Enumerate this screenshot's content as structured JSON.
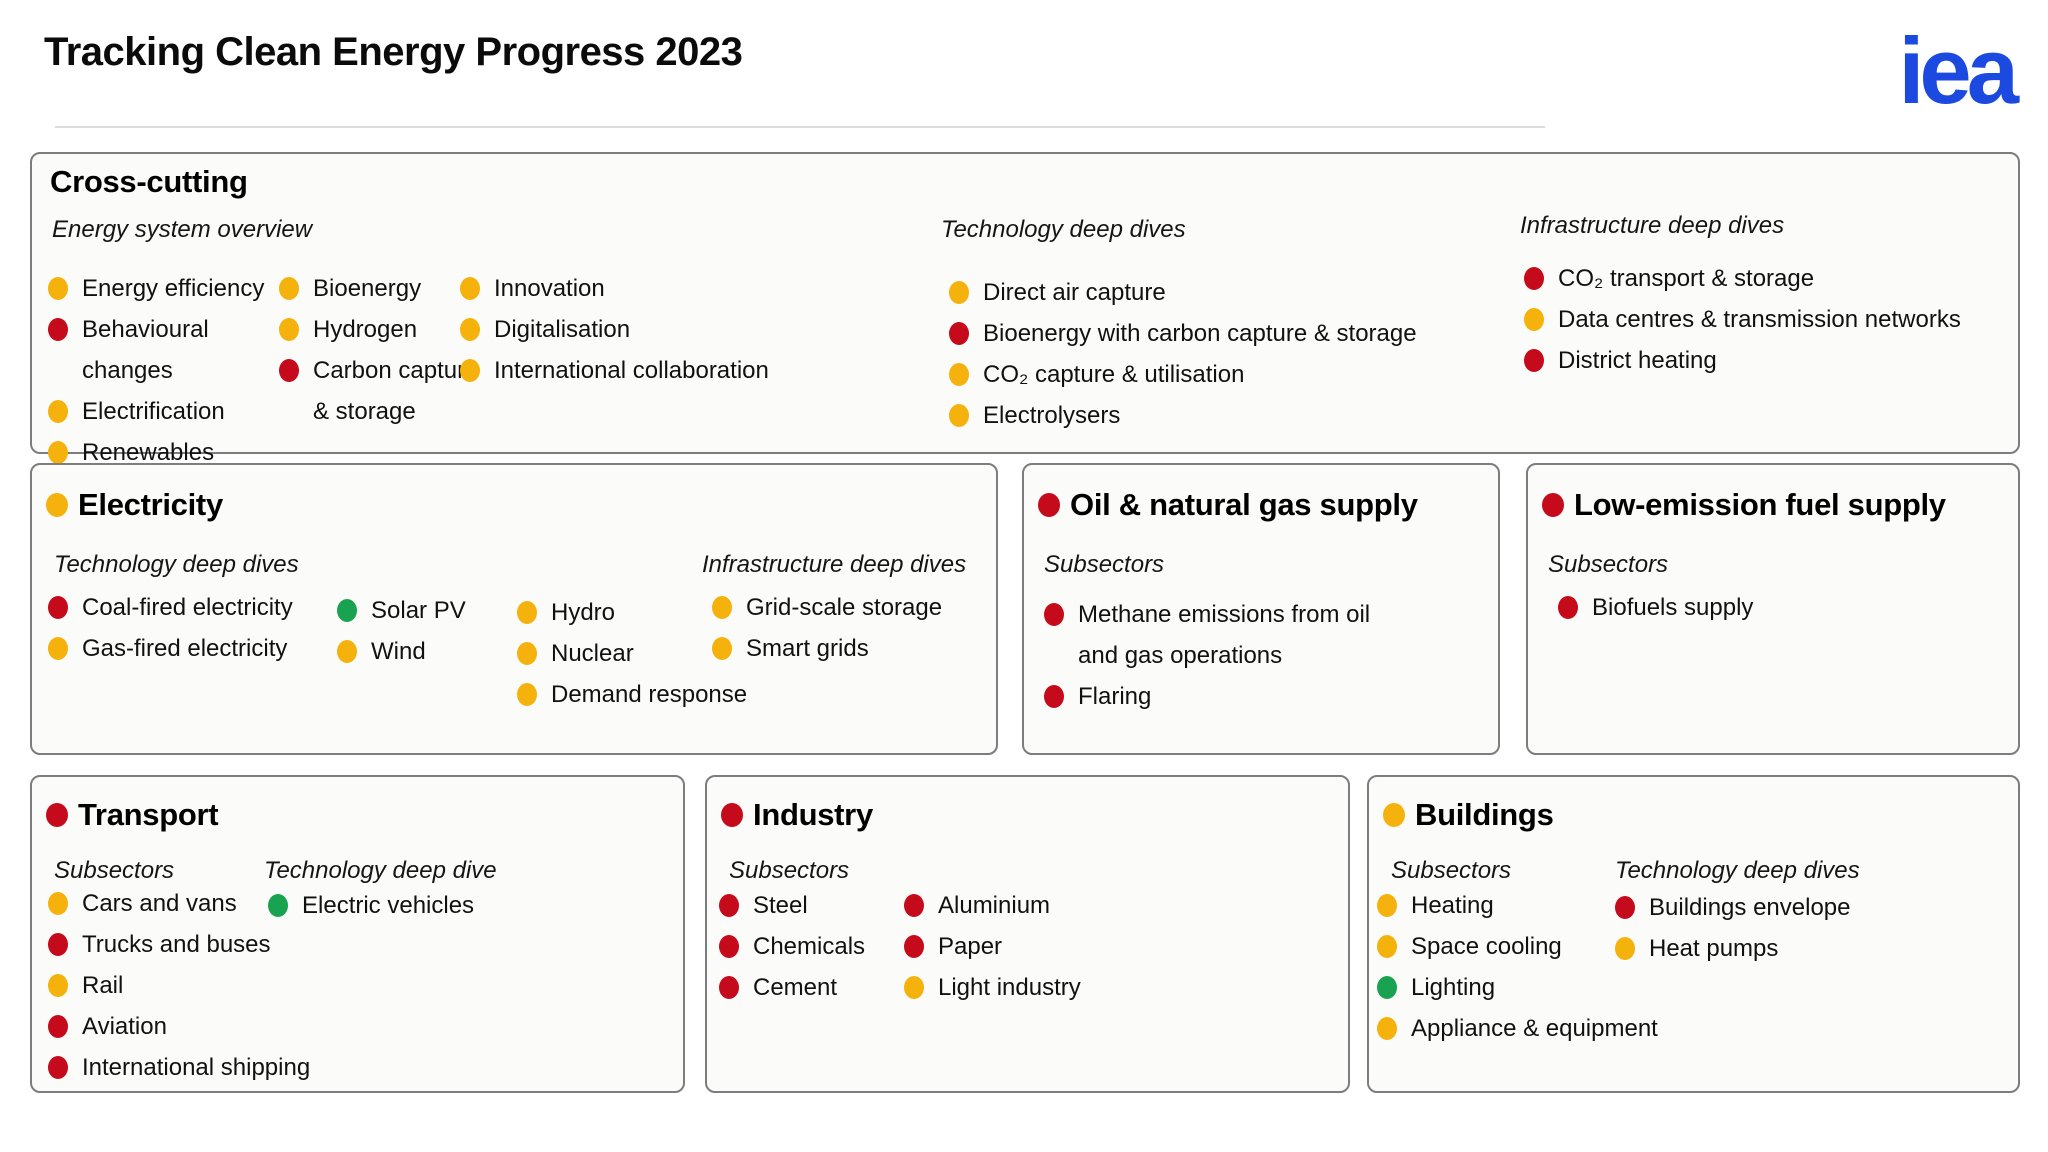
{
  "header": {
    "title": "Tracking Clean Energy Progress 2023",
    "logo": "iea"
  },
  "legend_colors": {
    "green": "#19A351",
    "yellow": "#F5B20D",
    "red": "#C50A1B"
  },
  "logo_color": "#1C49E0",
  "sections": {
    "cross_cutting": {
      "title": "Cross-cutting",
      "groups": [
        {
          "label": "Energy system overview",
          "columns": [
            [
              {
                "label": "Energy efficiency",
                "status": "yellow"
              },
              {
                "label": "Behavioural changes",
                "status": "red"
              },
              {
                "label": "Electrification",
                "status": "yellow"
              },
              {
                "label": "Renewables",
                "status": "yellow"
              }
            ],
            [
              {
                "label": "Bioenergy",
                "status": "yellow"
              },
              {
                "label": "Hydrogen",
                "status": "yellow"
              },
              {
                "label": "Carbon capture & storage",
                "status": "red"
              }
            ],
            [
              {
                "label": "Innovation",
                "status": "yellow"
              },
              {
                "label": "Digitalisation",
                "status": "yellow"
              },
              {
                "label": "International collaboration",
                "status": "yellow"
              }
            ]
          ]
        },
        {
          "label": "Technology deep dives",
          "columns": [
            [
              {
                "label": "Direct air capture",
                "status": "yellow"
              },
              {
                "label": "Bioenergy with carbon capture & storage",
                "status": "red"
              },
              {
                "label": "CO₂ capture & utilisation",
                "status": "yellow"
              },
              {
                "label": "Electrolysers",
                "status": "yellow"
              }
            ]
          ]
        },
        {
          "label": "Infrastructure deep dives",
          "columns": [
            [
              {
                "label": "CO₂ transport & storage",
                "status": "red"
              },
              {
                "label": "Data centres & transmission networks",
                "status": "yellow"
              },
              {
                "label": "District heating",
                "status": "red"
              }
            ]
          ]
        }
      ]
    },
    "electricity": {
      "title": "Electricity",
      "status": "yellow",
      "groups": [
        {
          "label": "Technology deep dives",
          "columns": [
            [
              {
                "label": "Coal-fired electricity",
                "status": "red"
              },
              {
                "label": "Gas-fired electricity",
                "status": "yellow"
              }
            ],
            [
              {
                "label": "Solar PV",
                "status": "green"
              },
              {
                "label": "Wind",
                "status": "yellow"
              }
            ],
            [
              {
                "label": "Hydro",
                "status": "yellow"
              },
              {
                "label": "Nuclear",
                "status": "yellow"
              },
              {
                "label": "Demand response",
                "status": "yellow"
              }
            ]
          ]
        },
        {
          "label": "Infrastructure deep dives",
          "columns": [
            [
              {
                "label": "Grid-scale storage",
                "status": "yellow"
              },
              {
                "label": "Smart grids",
                "status": "yellow"
              }
            ]
          ]
        }
      ]
    },
    "oil_gas": {
      "title": "Oil & natural gas supply",
      "status": "red",
      "groups": [
        {
          "label": "Subsectors",
          "columns": [
            [
              {
                "label": "Methane emissions from oil and gas operations",
                "status": "red"
              },
              {
                "label": "Flaring",
                "status": "red"
              }
            ]
          ]
        }
      ]
    },
    "low_emission_fuel": {
      "title": "Low-emission fuel supply",
      "status": "red",
      "groups": [
        {
          "label": "Subsectors",
          "columns": [
            [
              {
                "label": "Biofuels supply",
                "status": "red"
              }
            ]
          ]
        }
      ]
    },
    "transport": {
      "title": "Transport",
      "status": "red",
      "groups": [
        {
          "label": "Subsectors",
          "columns": [
            [
              {
                "label": "Cars and vans",
                "status": "yellow"
              },
              {
                "label": "Trucks and buses",
                "status": "red"
              },
              {
                "label": "Rail",
                "status": "yellow"
              },
              {
                "label": "Aviation",
                "status": "red"
              },
              {
                "label": "International shipping",
                "status": "red"
              }
            ]
          ]
        },
        {
          "label": "Technology deep dive",
          "columns": [
            [
              {
                "label": "Electric vehicles",
                "status": "green"
              }
            ]
          ]
        }
      ]
    },
    "industry": {
      "title": "Industry",
      "status": "red",
      "groups": [
        {
          "label": "Subsectors",
          "columns": [
            [
              {
                "label": "Steel",
                "status": "red"
              },
              {
                "label": "Chemicals",
                "status": "red"
              },
              {
                "label": "Cement",
                "status": "red"
              }
            ],
            [
              {
                "label": "Aluminium",
                "status": "red"
              },
              {
                "label": "Paper",
                "status": "red"
              },
              {
                "label": "Light industry",
                "status": "yellow"
              }
            ]
          ]
        }
      ]
    },
    "buildings": {
      "title": "Buildings",
      "status": "yellow",
      "groups": [
        {
          "label": "Subsectors",
          "columns": [
            [
              {
                "label": "Heating",
                "status": "yellow"
              },
              {
                "label": "Space cooling",
                "status": "yellow"
              },
              {
                "label": "Lighting",
                "status": "green"
              },
              {
                "label": "Appliance & equipment",
                "status": "yellow"
              }
            ]
          ]
        },
        {
          "label": "Technology deep dives",
          "columns": [
            [
              {
                "label": "Buildings envelope",
                "status": "red"
              },
              {
                "label": "Heat pumps",
                "status": "yellow"
              }
            ]
          ]
        }
      ]
    }
  }
}
